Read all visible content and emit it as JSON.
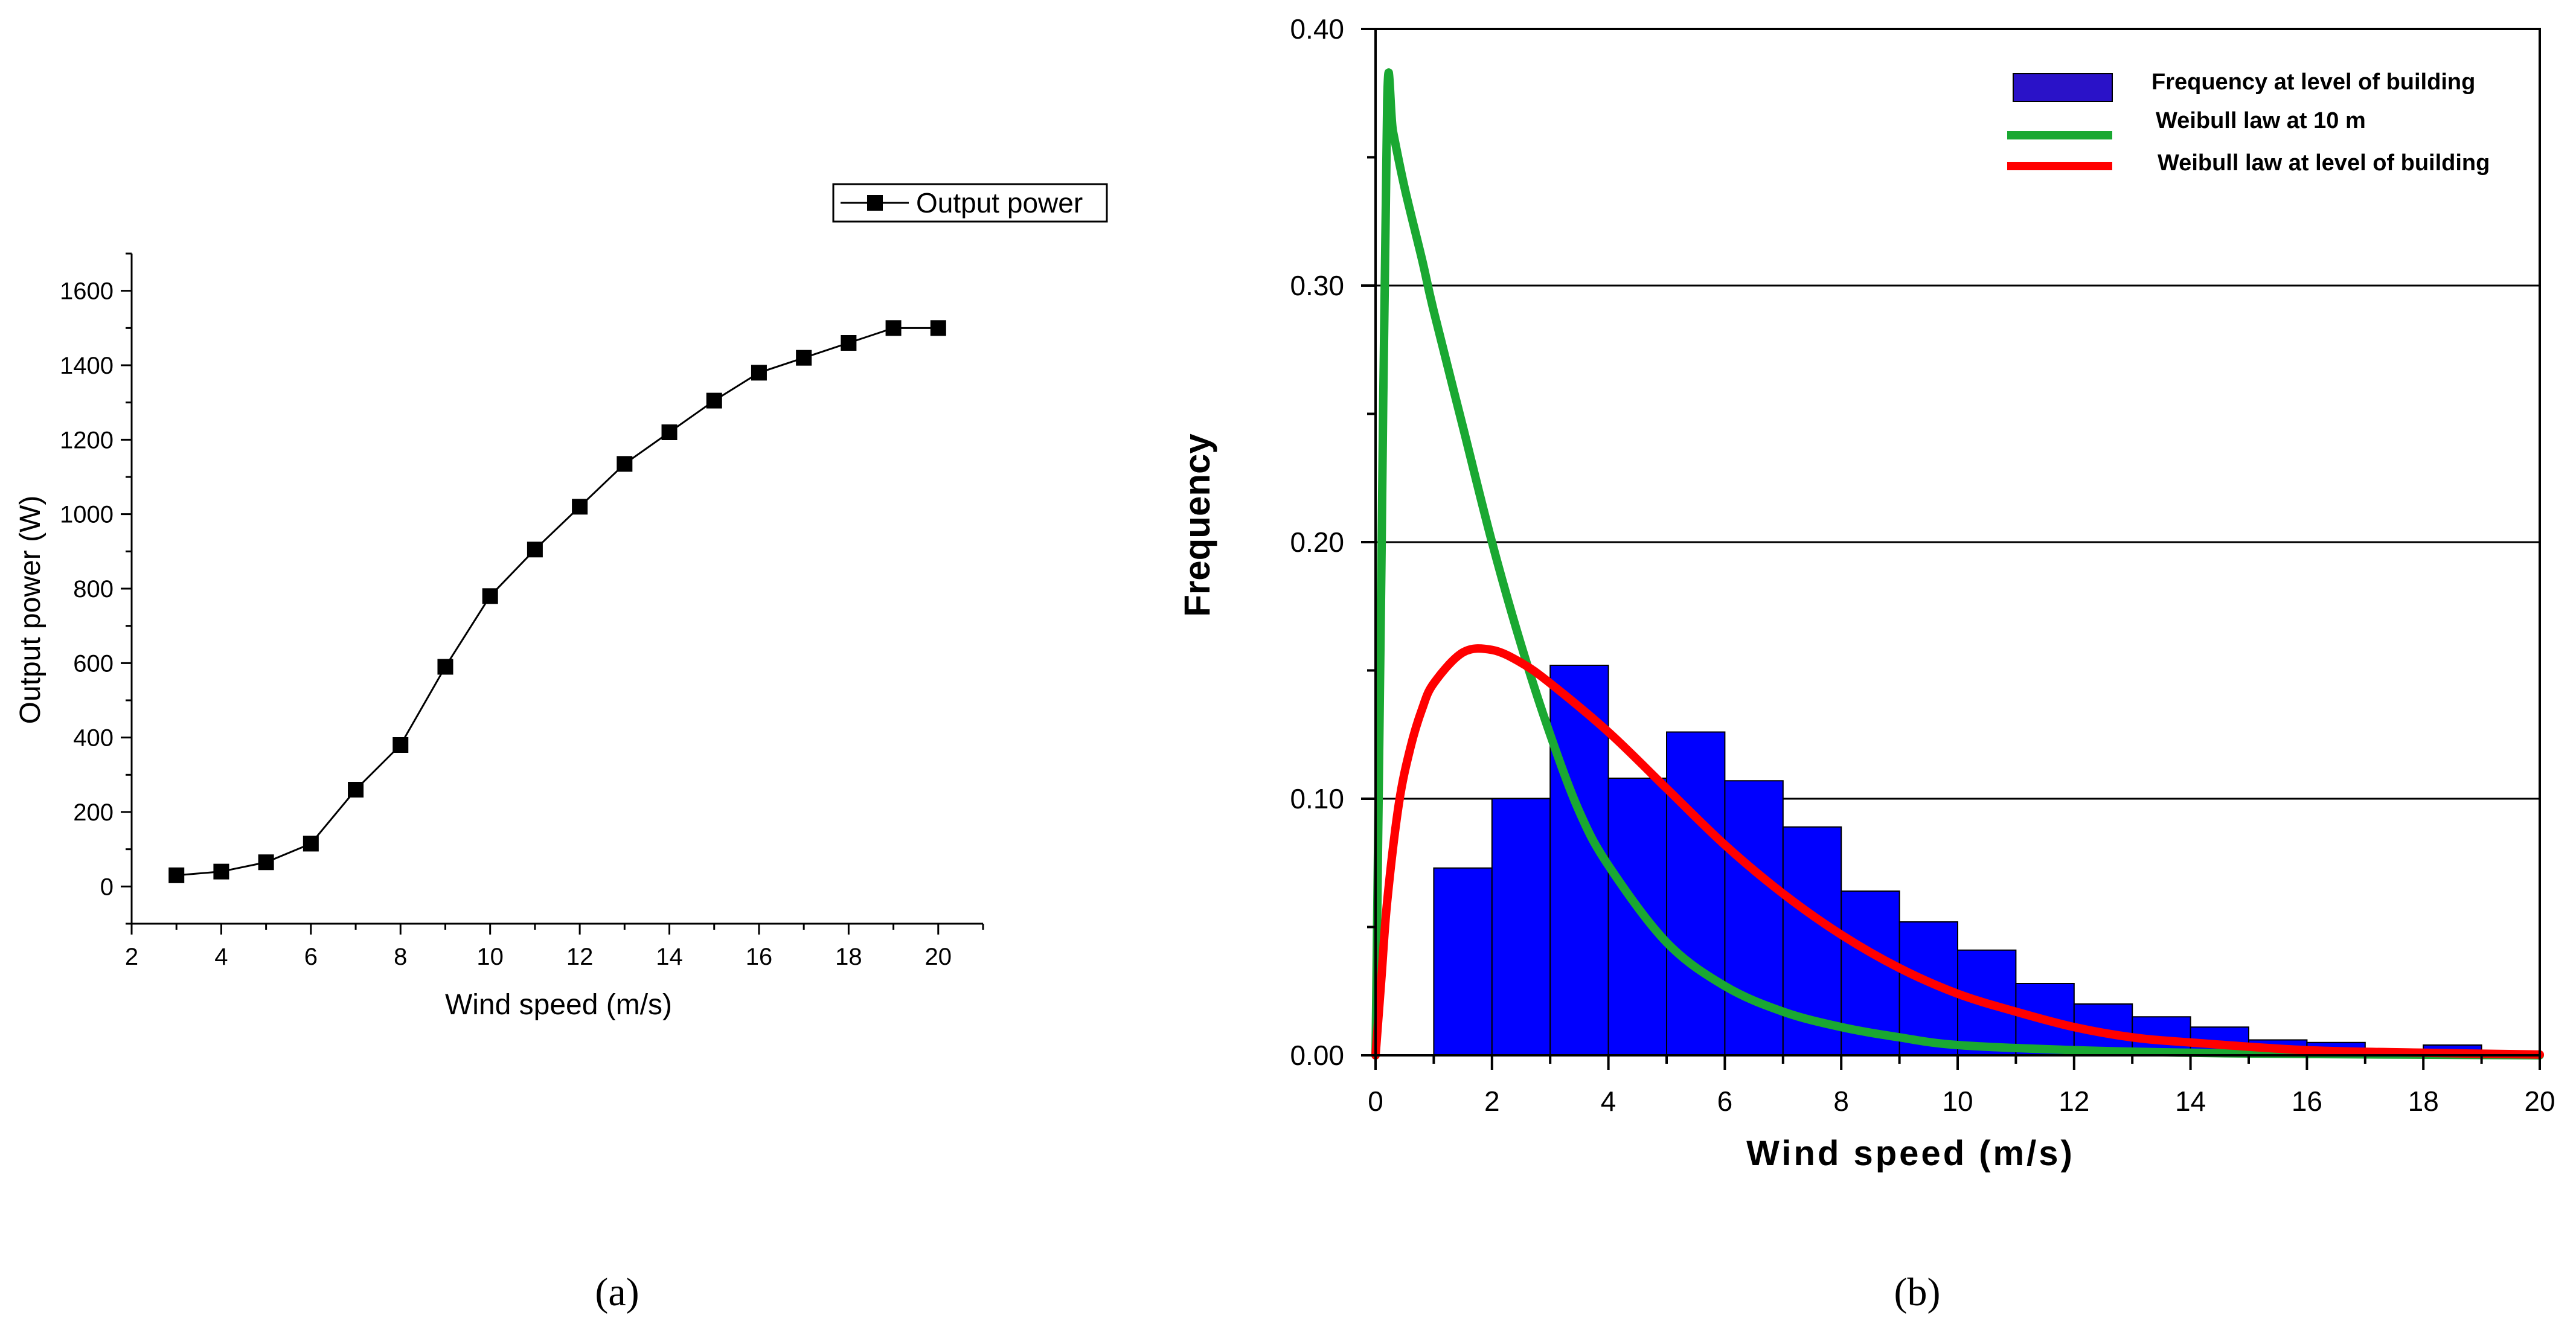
{
  "chart_data": [
    {
      "type": "line",
      "caption": "(a)",
      "xlabel": "Wind speed (m/s)",
      "ylabel": "Output power (W)",
      "xlim": [
        2,
        21
      ],
      "ylim": [
        -100,
        1700
      ],
      "xticks": [
        2,
        4,
        6,
        8,
        10,
        12,
        14,
        16,
        18,
        20
      ],
      "yticks": [
        0,
        200,
        400,
        600,
        800,
        1000,
        1200,
        1400,
        1600
      ],
      "grid": false,
      "legend_position": "top-right",
      "series": [
        {
          "name": "Output power",
          "marker": "square",
          "color": "#000000",
          "x": [
            3,
            4,
            5,
            6,
            7,
            8,
            9,
            10,
            11,
            12,
            13,
            14,
            15,
            16,
            17,
            18,
            19,
            20
          ],
          "y": [
            30,
            40,
            65,
            115,
            260,
            380,
            590,
            780,
            905,
            1020,
            1135,
            1220,
            1305,
            1380,
            1420,
            1460,
            1500,
            1500
          ]
        }
      ]
    },
    {
      "type": "bar",
      "caption": "(b)",
      "xlabel": "Wind speed (m/s)",
      "ylabel": "Frequency",
      "xlim": [
        0,
        20
      ],
      "ylim": [
        0,
        0.4
      ],
      "xticks": [
        0,
        2,
        4,
        6,
        8,
        10,
        12,
        14,
        16,
        18,
        20
      ],
      "yticks": [
        "0.00",
        "0.10",
        "0.20",
        "0.30",
        "0.40"
      ],
      "grid": true,
      "legend_position": "top-right",
      "histogram": {
        "name": "Frequency at level of building",
        "color": "#0000ff",
        "bin_width": 1,
        "bin_starts": [
          1,
          2,
          3,
          4,
          5,
          6,
          7,
          8,
          9,
          10,
          11,
          12,
          13,
          14,
          15,
          16,
          17,
          18,
          19
        ],
        "values": [
          0.073,
          0.1,
          0.152,
          0.108,
          0.126,
          0.107,
          0.089,
          0.064,
          0.052,
          0.041,
          0.028,
          0.02,
          0.015,
          0.011,
          0.006,
          0.005,
          0.001,
          0.004,
          0.001
        ]
      },
      "series": [
        {
          "name": "Weibull law at 10 m",
          "color": "#1aa832",
          "x": [
            0,
            0.1,
            0.2,
            0.3,
            0.5,
            0.8,
            1,
            1.5,
            2,
            2.5,
            3,
            3.5,
            4,
            5,
            6,
            7,
            8,
            9,
            10,
            12,
            14,
            16,
            20
          ],
          "y": [
            0,
            0.19,
            0.372,
            0.36,
            0.338,
            0.31,
            0.29,
            0.245,
            0.2,
            0.16,
            0.125,
            0.095,
            0.074,
            0.044,
            0.027,
            0.017,
            0.011,
            0.007,
            0.004,
            0.002,
            0.001,
            0.0005,
            0
          ]
        },
        {
          "name": "Weibull law at level of building",
          "color": "#ff0000",
          "x": [
            0,
            0.1,
            0.2,
            0.4,
            0.6,
            0.8,
            1,
            1.5,
            2,
            2.5,
            3,
            4,
            5,
            6,
            7,
            8,
            9,
            10,
            11,
            12,
            13,
            14,
            16,
            18,
            20
          ],
          "y": [
            0,
            0.03,
            0.06,
            0.098,
            0.12,
            0.135,
            0.145,
            0.157,
            0.158,
            0.153,
            0.145,
            0.126,
            0.104,
            0.082,
            0.063,
            0.047,
            0.034,
            0.024,
            0.017,
            0.011,
            0.007,
            0.005,
            0.002,
            0.001,
            0.0003
          ]
        }
      ]
    }
  ]
}
